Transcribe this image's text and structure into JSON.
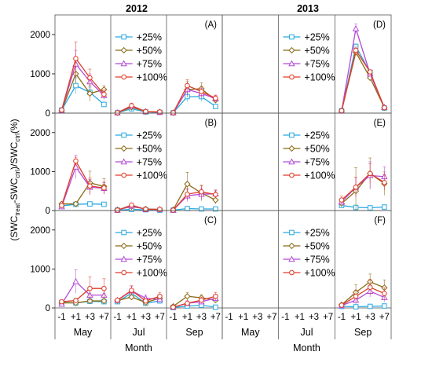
{
  "figure": {
    "col_titles": [
      "2012",
      "2013"
    ],
    "ylabel": {
      "pre": "(SWC",
      "sub1": "treat",
      "mid": "-SWC",
      "sub2": "ctrl",
      "mid2": ")/SWC",
      "sub3": "ctrl",
      "post": "(%)"
    },
    "xlabel": "Month",
    "months": [
      "May",
      "Jul",
      "Sep"
    ],
    "ticklabels": [
      "-1",
      "+1",
      "+3",
      "+7"
    ],
    "yticks": [
      "0",
      "1000",
      "2000"
    ]
  },
  "chart_data": {
    "type": "line",
    "xlabel": "Month",
    "ylabel": "(SWCtreat-SWCctrl)/SWCctrl(%)",
    "ylim": [
      0,
      2500
    ],
    "legend_placement": "upper-middle of each panel",
    "x_categories": [
      "-1",
      "+1",
      "+3",
      "+7",
      "-1",
      "+1",
      "+3",
      "+7",
      "-1",
      "+1",
      "+3",
      "+7"
    ],
    "series_styles": [
      {
        "name": "+25%",
        "color": "#29a9e0",
        "marker": "square"
      },
      {
        "name": "+50%",
        "color": "#8b6a14",
        "marker": "diamond"
      },
      {
        "name": "+75%",
        "color": "#b44bd8",
        "marker": "triangle"
      },
      {
        "name": "+100%",
        "color": "#e03c28",
        "marker": "circle"
      }
    ],
    "panels": [
      {
        "id": "A",
        "year": "2012",
        "series": [
          {
            "name": "+25%",
            "values": [
              80,
              700,
              530,
              220,
              10,
              110,
              30,
              20,
              10,
              420,
              420,
              170
            ],
            "errors": [
              20,
              200,
              130,
              60,
              5,
              40,
              10,
              10,
              5,
              130,
              120,
              50
            ]
          },
          {
            "name": "+50%",
            "values": [
              70,
              1000,
              500,
              600,
              10,
              150,
              40,
              30,
              10,
              600,
              620,
              330
            ],
            "errors": [
              20,
              250,
              200,
              100,
              5,
              50,
              10,
              10,
              5,
              200,
              150,
              80
            ]
          },
          {
            "name": "+75%",
            "values": [
              70,
              1250,
              800,
              450,
              10,
              180,
              40,
              20,
              10,
              600,
              500,
              370
            ],
            "errors": [
              20,
              350,
              200,
              100,
              5,
              60,
              10,
              10,
              5,
              150,
              130,
              80
            ]
          },
          {
            "name": "+100%",
            "values": [
              80,
              1390,
              900,
              480,
              10,
              190,
              40,
              30,
              10,
              700,
              550,
              380
            ],
            "errors": [
              20,
              420,
              220,
              110,
              5,
              60,
              10,
              10,
              5,
              150,
              130,
              80
            ]
          }
        ]
      },
      {
        "id": "B",
        "year": "2012",
        "series": [
          {
            "name": "+25%",
            "values": [
              120,
              160,
              170,
              160,
              10,
              30,
              20,
              10,
              10,
              50,
              40,
              40
            ],
            "errors": [
              30,
              40,
              40,
              40,
              5,
              10,
              5,
              5,
              5,
              20,
              20,
              20
            ]
          },
          {
            "name": "+50%",
            "values": [
              170,
              170,
              710,
              620,
              20,
              100,
              40,
              30,
              20,
              680,
              450,
              270
            ],
            "errors": [
              50,
              50,
              300,
              200,
              10,
              40,
              20,
              10,
              10,
              300,
              200,
              100
            ]
          },
          {
            "name": "+75%",
            "values": [
              100,
              1120,
              600,
              570,
              10,
              120,
              30,
              30,
              10,
              380,
              420,
              430
            ],
            "errors": [
              30,
              300,
              200,
              150,
              5,
              40,
              10,
              10,
              5,
              150,
              150,
              100
            ]
          },
          {
            "name": "+100%",
            "values": [
              130,
              1270,
              630,
              580,
              10,
              140,
              30,
              30,
              10,
              420,
              480,
              410
            ],
            "errors": [
              40,
              100,
              200,
              150,
              5,
              50,
              10,
              10,
              5,
              150,
              150,
              100
            ]
          }
        ]
      },
      {
        "id": "C",
        "year": "2012",
        "series": [
          {
            "name": "+25%",
            "values": [
              140,
              130,
              170,
              160,
              160,
              380,
              120,
              180,
              10,
              50,
              70,
              20
            ],
            "errors": [
              30,
              30,
              40,
              40,
              40,
              80,
              40,
              40,
              5,
              20,
              20,
              10
            ]
          },
          {
            "name": "+50%",
            "values": [
              130,
              130,
              180,
              180,
              190,
              280,
              140,
              250,
              40,
              300,
              260,
              200
            ],
            "errors": [
              30,
              40,
              60,
              60,
              50,
              80,
              50,
              80,
              20,
              100,
              80,
              60
            ]
          },
          {
            "name": "+75%",
            "values": [
              100,
              680,
              330,
              330,
              200,
              440,
              250,
              220,
              20,
              120,
              160,
              250
            ],
            "errors": [
              30,
              300,
              150,
              120,
              50,
              120,
              80,
              80,
              10,
              60,
              60,
              80
            ]
          },
          {
            "name": "+100%",
            "values": [
              160,
              190,
              500,
              500,
              200,
              450,
              180,
              300,
              20,
              120,
              200,
              300
            ],
            "errors": [
              40,
              60,
              300,
              250,
              50,
              120,
              60,
              100,
              10,
              60,
              80,
              100
            ]
          }
        ]
      },
      {
        "id": "D",
        "year": "2013",
        "series": [
          {
            "name": "+25%",
            "values": [
              null,
              null,
              null,
              null,
              null,
              null,
              null,
              null,
              60,
              1700,
              1040,
              130
            ],
            "errors": [
              0,
              0,
              0,
              0,
              0,
              0,
              0,
              0,
              20,
              60,
              40,
              20
            ]
          },
          {
            "name": "+50%",
            "values": [
              null,
              null,
              null,
              null,
              null,
              null,
              null,
              null,
              60,
              1550,
              900,
              140
            ],
            "errors": [
              0,
              0,
              0,
              0,
              0,
              0,
              0,
              0,
              20,
              60,
              40,
              20
            ]
          },
          {
            "name": "+75%",
            "values": [
              null,
              null,
              null,
              null,
              null,
              null,
              null,
              null,
              60,
              2150,
              1000,
              150
            ],
            "errors": [
              0,
              0,
              0,
              0,
              0,
              0,
              0,
              0,
              20,
              120,
              40,
              20
            ]
          },
          {
            "name": "+100%",
            "values": [
              null,
              null,
              null,
              null,
              null,
              null,
              null,
              null,
              60,
              1600,
              1050,
              140
            ],
            "errors": [
              0,
              0,
              0,
              0,
              0,
              0,
              0,
              0,
              20,
              80,
              40,
              20
            ]
          }
        ]
      },
      {
        "id": "E",
        "year": "2013",
        "series": [
          {
            "name": "+25%",
            "values": [
              null,
              null,
              null,
              null,
              null,
              null,
              null,
              null,
              130,
              80,
              70,
              90
            ],
            "errors": [
              0,
              0,
              0,
              0,
              0,
              0,
              0,
              0,
              30,
              30,
              30,
              30
            ]
          },
          {
            "name": "+50%",
            "values": [
              null,
              null,
              null,
              null,
              null,
              null,
              null,
              null,
              180,
              500,
              950,
              690
            ],
            "errors": [
              0,
              0,
              0,
              0,
              0,
              0,
              0,
              0,
              80,
              600,
              400,
              300
            ]
          },
          {
            "name": "+75%",
            "values": [
              null,
              null,
              null,
              null,
              null,
              null,
              null,
              null,
              220,
              600,
              900,
              870
            ],
            "errors": [
              0,
              0,
              0,
              0,
              0,
              0,
              0,
              0,
              80,
              250,
              350,
              250
            ]
          },
          {
            "name": "+100%",
            "values": [
              null,
              null,
              null,
              null,
              null,
              null,
              null,
              null,
              270,
              600,
              950,
              720
            ],
            "errors": [
              0,
              0,
              0,
              0,
              0,
              0,
              0,
              0,
              100,
              250,
              250,
              200
            ]
          }
        ]
      },
      {
        "id": "F",
        "year": "2013",
        "series": [
          {
            "name": "+25%",
            "values": [
              null,
              null,
              null,
              null,
              null,
              null,
              null,
              null,
              40,
              30,
              40,
              50
            ],
            "errors": [
              0,
              0,
              0,
              0,
              0,
              0,
              0,
              0,
              20,
              20,
              20,
              20
            ]
          },
          {
            "name": "+50%",
            "values": [
              null,
              null,
              null,
              null,
              null,
              null,
              null,
              null,
              80,
              400,
              670,
              520
            ],
            "errors": [
              0,
              0,
              0,
              0,
              0,
              0,
              0,
              0,
              40,
              200,
              200,
              200
            ]
          },
          {
            "name": "+75%",
            "values": [
              null,
              null,
              null,
              null,
              null,
              null,
              null,
              null,
              60,
              200,
              430,
              270
            ],
            "errors": [
              0,
              0,
              0,
              0,
              0,
              0,
              0,
              0,
              30,
              100,
              150,
              120
            ]
          },
          {
            "name": "+100%",
            "values": [
              null,
              null,
              null,
              null,
              null,
              null,
              null,
              null,
              70,
              300,
              530,
              370
            ],
            "errors": [
              0,
              0,
              0,
              0,
              0,
              0,
              0,
              0,
              30,
              150,
              200,
              150
            ]
          }
        ]
      }
    ]
  }
}
